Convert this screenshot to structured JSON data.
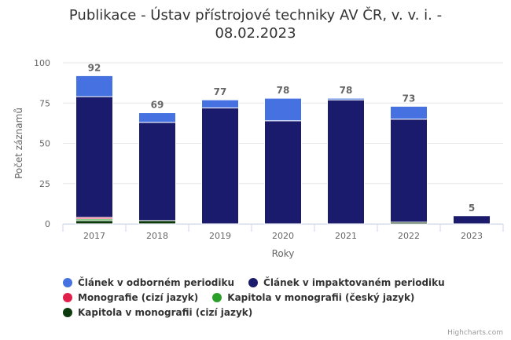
{
  "title_line1": "Publikace - Ústav přístrojové techniky AV ČR, v. v. i. -",
  "title_line2": "08.02.2023",
  "credits": "Highcharts.com",
  "chart_data": {
    "type": "bar",
    "stacked": true,
    "categories": [
      "2017",
      "2018",
      "2019",
      "2020",
      "2021",
      "2022",
      "2023"
    ],
    "xlabel": "Roky",
    "ylabel": "Počet záznamů",
    "ylim": [
      0,
      100
    ],
    "yticks": [
      "0",
      "25",
      "50",
      "75",
      "100"
    ],
    "totals": [
      "92",
      "69",
      "77",
      "78",
      "78",
      "73",
      "5"
    ],
    "series": [
      {
        "name": "Článek v odborném periodiku",
        "color": "#4572e0",
        "values": [
          13,
          6,
          5,
          14,
          1,
          8,
          0
        ]
      },
      {
        "name": "Článek v impaktovaném periodiku",
        "color": "#1b1b6e",
        "values": [
          75,
          61,
          72,
          64,
          77,
          64,
          5
        ]
      },
      {
        "name": "Monografie (cizí jazyk)",
        "color": "#e0204a",
        "values": [
          1,
          0,
          0,
          0,
          0,
          0,
          0
        ]
      },
      {
        "name": "Kapitola v monografii (český jazyk)",
        "color": "#2aa02a",
        "values": [
          1,
          0,
          0,
          0,
          0,
          0,
          0
        ]
      },
      {
        "name": "Kapitola v monografii (cizí jazyk)",
        "color": "#0d3a0d",
        "values": [
          2,
          2,
          0,
          0,
          0,
          1,
          0
        ]
      }
    ],
    "grid": true,
    "legend_position": "bottom"
  }
}
